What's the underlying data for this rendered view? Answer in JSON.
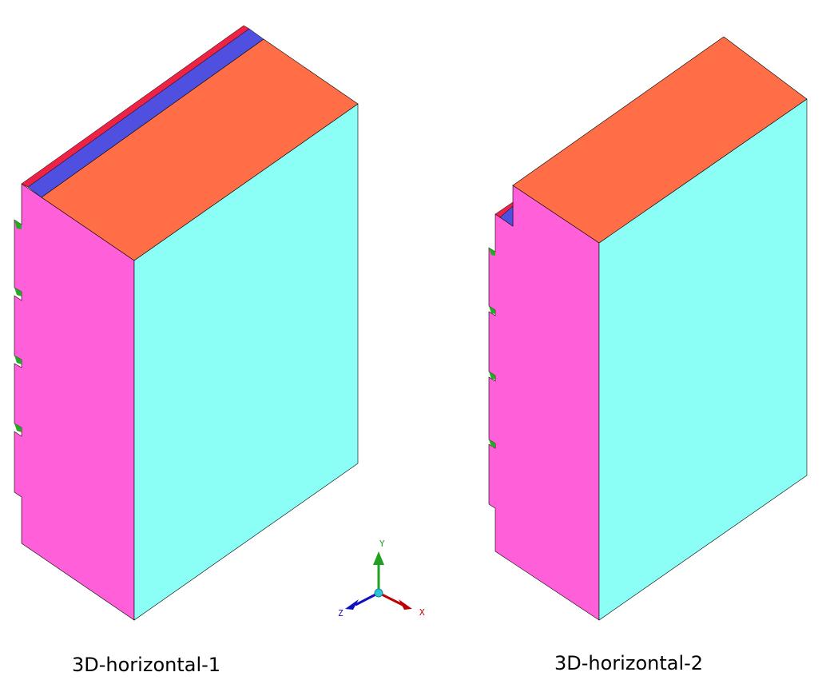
{
  "captions": {
    "left": "3D-horizontal-1",
    "right": "3D-horizontal-2"
  },
  "axes": {
    "x_label": "X",
    "y_label": "Y",
    "z_label": "Z"
  },
  "colors": {
    "front_face": "#8bfff6",
    "top_face": "#ff6e47",
    "side_face": "#ff5fd9",
    "red_layer": "#ee2244",
    "blue_layer": "#4f4fe0",
    "notch": "#22aa22",
    "x_axis": "#c00000",
    "y_axis": "#20a020",
    "z_axis": "#1010c0"
  }
}
